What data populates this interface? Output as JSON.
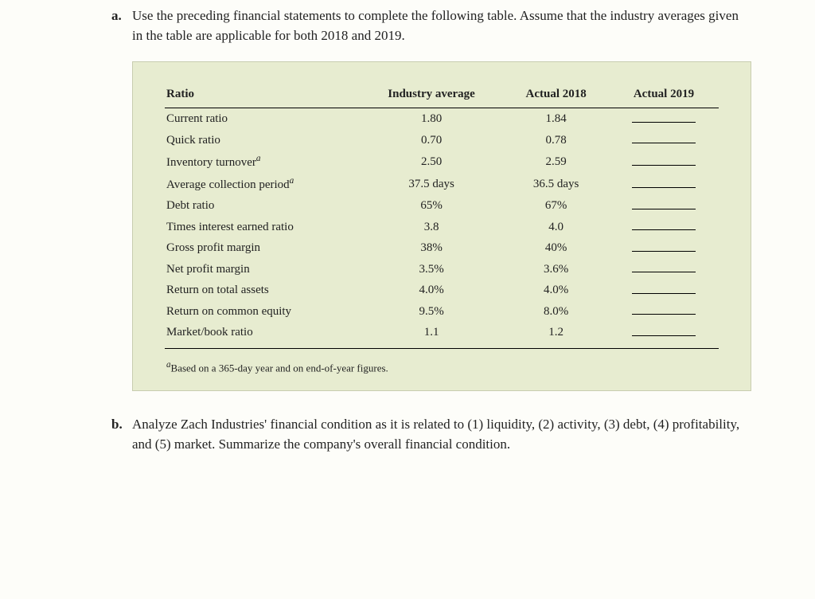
{
  "questions": {
    "a": {
      "label": "a.",
      "text": "Use the preceding financial statements to complete the following table. Assume that the industry averages given in the table are applicable for both 2018 and 2019."
    },
    "b": {
      "label": "b.",
      "text": "Analyze Zach Industries' financial condition as it is related to (1) liquidity, (2) activity, (3) debt, (4) profitability, and (5) market. Summarize the company's overall financial condition."
    }
  },
  "table": {
    "headers": {
      "c0": "Ratio",
      "c1": "Industry average",
      "c2": "Actual 2018",
      "c3": "Actual 2019"
    },
    "rows": [
      {
        "name": "Current ratio",
        "sup": "",
        "avg": "1.80",
        "a2018": "1.84"
      },
      {
        "name": "Quick ratio",
        "sup": "",
        "avg": "0.70",
        "a2018": "0.78"
      },
      {
        "name": "Inventory turnover",
        "sup": "a",
        "avg": "2.50",
        "a2018": "2.59"
      },
      {
        "name": "Average collection period",
        "sup": "a",
        "avg": "37.5 days",
        "a2018": "36.5 days"
      },
      {
        "name": "Debt ratio",
        "sup": "",
        "avg": "65%",
        "a2018": "67%"
      },
      {
        "name": "Times interest earned ratio",
        "sup": "",
        "avg": "3.8",
        "a2018": "4.0"
      },
      {
        "name": "Gross profit margin",
        "sup": "",
        "avg": "38%",
        "a2018": "40%"
      },
      {
        "name": "Net profit margin",
        "sup": "",
        "avg": "3.5%",
        "a2018": "3.6%"
      },
      {
        "name": "Return on total assets",
        "sup": "",
        "avg": "4.0%",
        "a2018": "4.0%"
      },
      {
        "name": "Return on common equity",
        "sup": "",
        "avg": "9.5%",
        "a2018": "8.0%"
      },
      {
        "name": "Market/book ratio",
        "sup": "",
        "avg": "1.1",
        "a2018": "1.2"
      }
    ],
    "footnote": {
      "mark": "a",
      "text": "Based on a 365-day year and on end-of-year figures."
    }
  },
  "style": {
    "table_bg": "#e7ecd0",
    "page_bg": "#fdfdf9",
    "rule_color": "#000000",
    "body_font_size": 17,
    "table_font_size": 15,
    "footnote_font_size": 13
  }
}
